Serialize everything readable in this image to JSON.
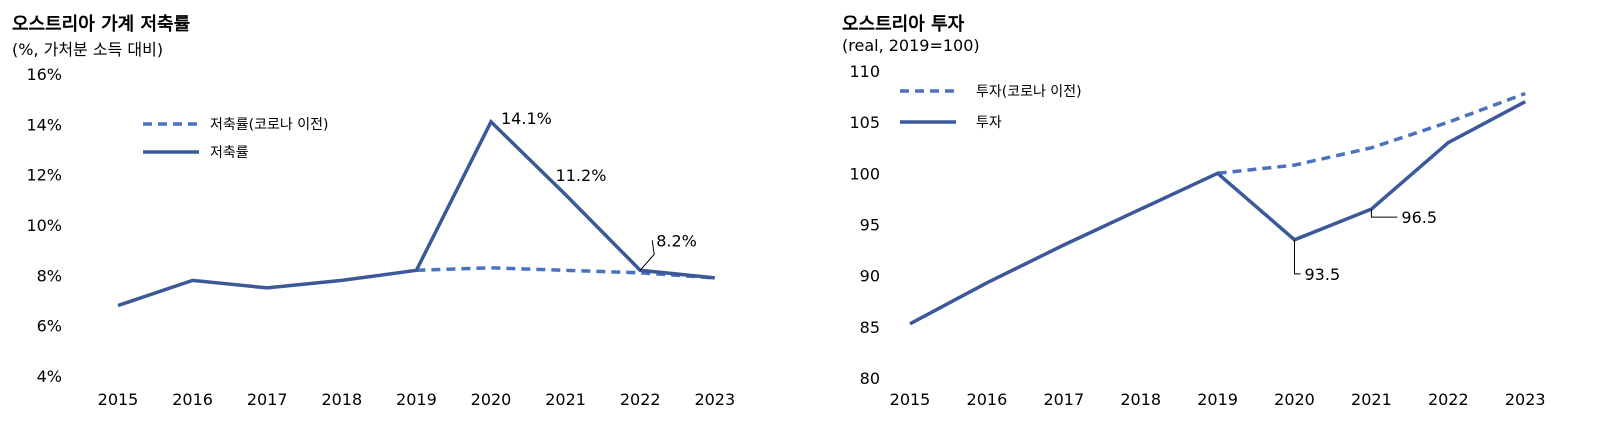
{
  "chart_data": [
    {
      "type": "line",
      "title": "오스트리아 가계 저축률",
      "subtitle": "(%, 가처분 소득 대비)",
      "categories": [
        "2015",
        "2016",
        "2017",
        "2018",
        "2019",
        "2020",
        "2021",
        "2022",
        "2023"
      ],
      "y_ticks": [
        "16%",
        "14%",
        "12%",
        "10%",
        "8%",
        "6%",
        "4%"
      ],
      "ylim": [
        4,
        16
      ],
      "grid": false,
      "legend_position": "top-left",
      "colors": {
        "line": "#3b5998",
        "dashed": "#4a72bf"
      },
      "series": [
        {
          "name": "저축률(코로나 이전)",
          "style": "dashed",
          "values": [
            null,
            null,
            null,
            null,
            8.2,
            8.3,
            8.2,
            8.1,
            7.9
          ]
        },
        {
          "name": "저축률",
          "style": "solid",
          "values": [
            6.8,
            7.8,
            7.5,
            7.8,
            8.2,
            14.1,
            11.2,
            8.2,
            7.9
          ]
        }
      ],
      "annotations": [
        {
          "text": "14.1%",
          "category": "2020",
          "value": 14.1
        },
        {
          "text": "11.2%",
          "category": "2021",
          "value": 11.2
        },
        {
          "text": "8.2%",
          "category": "2022",
          "value": 8.2
        }
      ]
    },
    {
      "type": "line",
      "title": "오스트리아 투자",
      "subtitle": "(real,  2019=100)",
      "categories": [
        "2015",
        "2016",
        "2017",
        "2018",
        "2019",
        "2020",
        "2021",
        "2022",
        "2023"
      ],
      "y_ticks": [
        "110",
        "105",
        "100",
        "95",
        "90",
        "85",
        "80"
      ],
      "ylim": [
        80,
        110
      ],
      "grid": false,
      "legend_position": "top-left",
      "colors": {
        "line": "#3b5998",
        "dashed": "#4a72bf"
      },
      "series": [
        {
          "name": "투자(코로나 이전)",
          "style": "dashed",
          "values": [
            null,
            null,
            null,
            null,
            100.0,
            100.8,
            102.5,
            105.0,
            107.8
          ]
        },
        {
          "name": "투자",
          "style": "solid",
          "values": [
            85.3,
            89.3,
            93.0,
            96.5,
            100.0,
            93.5,
            96.5,
            103.0,
            107.0
          ]
        }
      ],
      "annotations": [
        {
          "text": "93.5",
          "category": "2020",
          "value": 93.5
        },
        {
          "text": "96.5",
          "category": "2021",
          "value": 96.5
        }
      ]
    }
  ]
}
